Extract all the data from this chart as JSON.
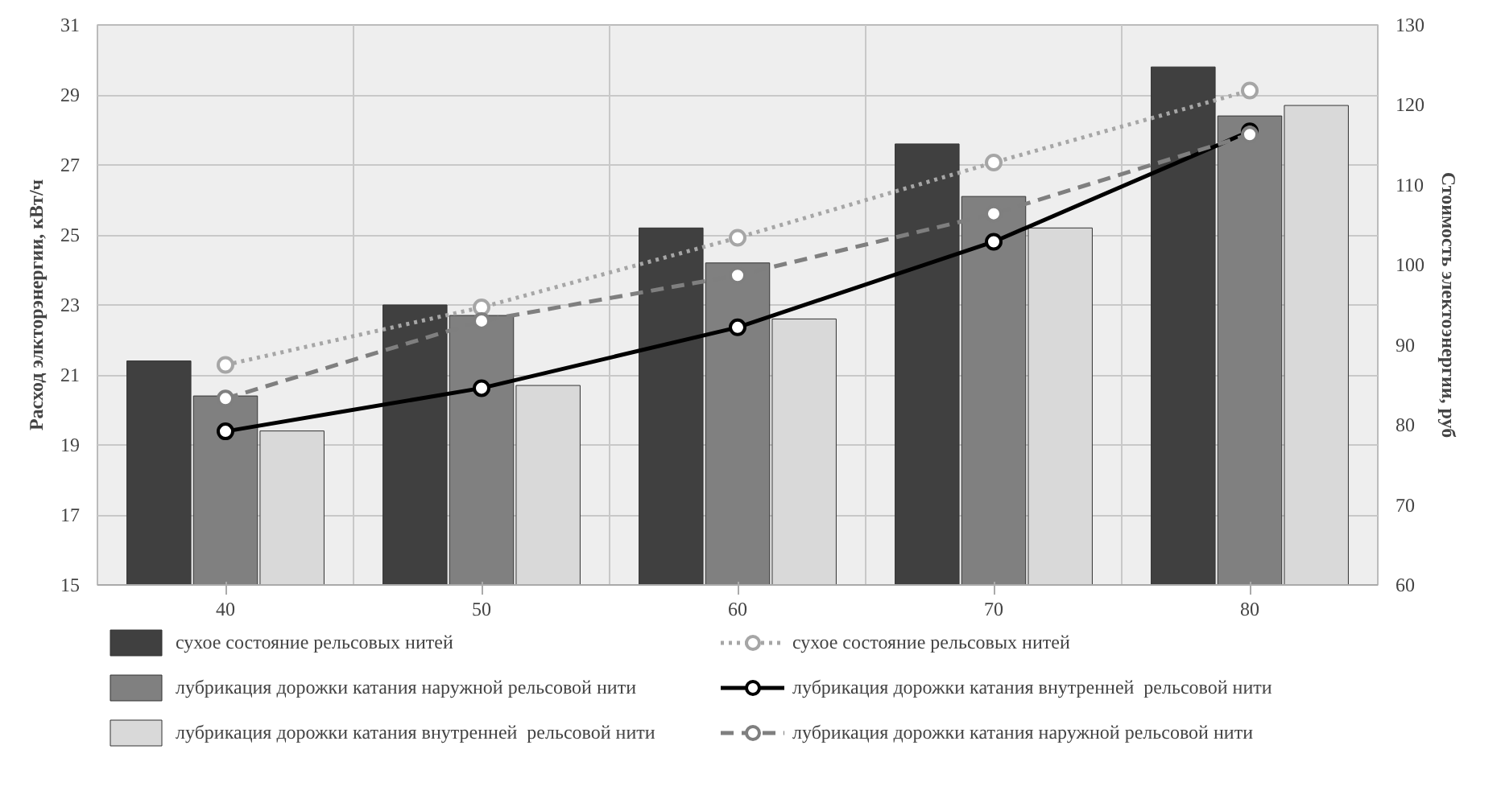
{
  "chart_data": {
    "type": "bar",
    "ylabel": "Расход элкторэнергии, кВт/ч",
    "y2label": "Стоимость электоэнергии, руб",
    "categories": [
      "40",
      "50",
      "60",
      "70",
      "80"
    ],
    "ylim": [
      15,
      31
    ],
    "yticks": [
      15,
      17,
      19,
      21,
      23,
      25,
      27,
      29,
      31
    ],
    "y2lim": [
      60,
      130
    ],
    "y2ticks": [
      60,
      70,
      80,
      90,
      100,
      110,
      120,
      130
    ],
    "grid": true,
    "legend": "bottom",
    "series": [
      {
        "name": "сухое состояние рельсовых нитей",
        "color": "#404040",
        "values": [
          21.4,
          23.0,
          25.2,
          27.6,
          29.8
        ]
      },
      {
        "name": "лубрикация дорожки катания наружной рельсовой нити",
        "color": "#808080",
        "values": [
          20.4,
          22.7,
          24.2,
          26.1,
          28.4
        ]
      },
      {
        "name": "лубрикация дорожки катания внутренней  рельсовой нити",
        "color": "#d9d9d9",
        "values": [
          19.4,
          20.7,
          22.6,
          25.2,
          28.7
        ]
      },
      {
        "name": "сухое состояние рельсовых нитей",
        "type": "line",
        "axis": "y2",
        "color": "#a6a6a6",
        "line_style": "dotted",
        "marker": "circle",
        "values": [
          87.5,
          94.7,
          103.4,
          112.8,
          121.8
        ]
      },
      {
        "name": "лубрикация дорожки катания внутренней  рельсовой нити",
        "type": "line",
        "axis": "y2",
        "color": "#000000",
        "line_style": "solid",
        "marker": "circle",
        "values": [
          79.2,
          84.6,
          92.2,
          102.9,
          116.7
        ]
      },
      {
        "name": "лубрикация дорожки катания наружной рельсовой нити",
        "type": "line",
        "axis": "y2",
        "color": "#7f7f7f",
        "line_style": "dashed",
        "marker": "circle",
        "values": [
          83.3,
          93.0,
          98.7,
          106.4,
          116.3
        ]
      }
    ]
  }
}
